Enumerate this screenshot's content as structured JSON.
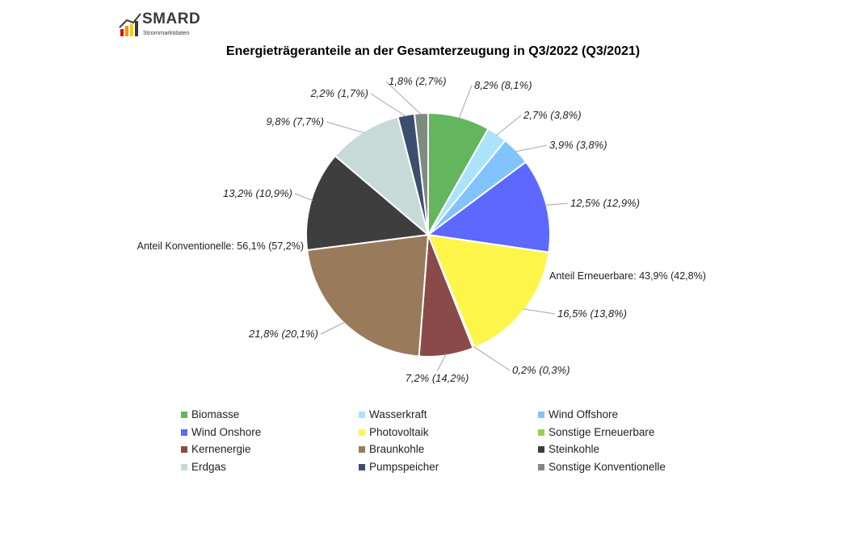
{
  "logo": {
    "name": "SMARD",
    "subtitle": "Strommarktdaten",
    "colors": [
      "#e30613",
      "#f39200",
      "#ffcc00",
      "#3a3a3a"
    ]
  },
  "chart_data": {
    "type": "pie",
    "title": "Energieträgeranteile an der Gesamterzeugung in Q3/2022 (Q3/2021)",
    "start_angle_deg": 0,
    "direction": "clockwise",
    "series": [
      {
        "name": "Biomasse",
        "value": 8.2,
        "previous": 8.1,
        "label": "8,2% (8,1%)",
        "color": "#63b65d"
      },
      {
        "name": "Wasserkraft",
        "value": 2.7,
        "previous": 3.8,
        "label": "2,7% (3,8%)",
        "color": "#abe3fd"
      },
      {
        "name": "Wind Offshore",
        "value": 3.9,
        "previous": 3.8,
        "label": "3,9% (3,8%)",
        "color": "#82c3fb"
      },
      {
        "name": "Wind Onshore",
        "value": 12.5,
        "previous": 12.9,
        "label": "12,5% (12,9%)",
        "color": "#5c68fe"
      },
      {
        "name": "Photovoltaik",
        "value": 16.5,
        "previous": 13.8,
        "label": "16,5% (13,8%)",
        "color": "#fef54a"
      },
      {
        "name": "Sonstige Erneuerbare",
        "value": 0.2,
        "previous": 0.3,
        "label": "0,2% (0,3%)",
        "color": "#8fd24f"
      },
      {
        "name": "Kernenergie",
        "value": 7.2,
        "previous": 14.2,
        "label": "7,2% (14,2%)",
        "color": "#8b4a4a"
      },
      {
        "name": "Braunkohle",
        "value": 21.8,
        "previous": 20.1,
        "label": "21,8% (20,1%)",
        "color": "#997b5c"
      },
      {
        "name": "Steinkohle",
        "value": 13.2,
        "previous": 10.9,
        "label": "13,2% (10,9%)",
        "color": "#3e3e3e"
      },
      {
        "name": "Erdgas",
        "value": 9.8,
        "previous": 7.7,
        "label": "9,8% (7,7%)",
        "color": "#c7dad8"
      },
      {
        "name": "Pumpspeicher",
        "value": 2.2,
        "previous": 1.7,
        "label": "2,2% (1,7%)",
        "color": "#3b4e6e"
      },
      {
        "name": "Sonstige Konventionelle",
        "value": 1.8,
        "previous": 2.7,
        "label": "1,8% (2,7%)",
        "color": "#7f8a80"
      }
    ],
    "group_labels": [
      {
        "text": "Anteil Erneuerbare: 43,9% (42,8%)"
      },
      {
        "text": "Anteil Konventionelle: 56,1% (57,2%)"
      }
    ],
    "legend_position": "bottom",
    "legend_order": [
      "Biomasse",
      "Wasserkraft",
      "Wind Offshore",
      "Wind Onshore",
      "Photovoltaik",
      "Sonstige Erneuerbare",
      "Kernenergie",
      "Braunkohle",
      "Steinkohle",
      "Erdgas",
      "Pumpspeicher",
      "Sonstige Konventionelle"
    ]
  }
}
